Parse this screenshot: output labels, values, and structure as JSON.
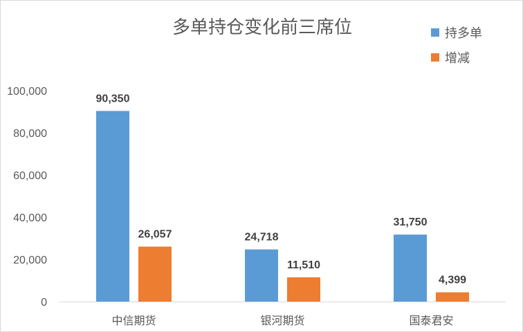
{
  "chart_data": {
    "type": "bar",
    "title": "多单持仓变化前三席位",
    "categories": [
      "中信期货",
      "银河期货",
      "国泰君安"
    ],
    "series": [
      {
        "name": "持多单",
        "values": [
          90350,
          24718,
          31750
        ],
        "color": "#5b9bd5"
      },
      {
        "name": "增减",
        "values": [
          26057,
          11510,
          4399
        ],
        "color": "#ed7d31"
      }
    ],
    "y_ticks": [
      "0",
      "20,000",
      "40,000",
      "60,000",
      "80,000",
      "100,000"
    ],
    "ylim": [
      0,
      100000
    ],
    "data_labels": [
      [
        "90,350",
        "24,718",
        "31,750"
      ],
      [
        "26,057",
        "11,510",
        "4,399"
      ]
    ],
    "grid": false,
    "legend_position": "top-right"
  }
}
